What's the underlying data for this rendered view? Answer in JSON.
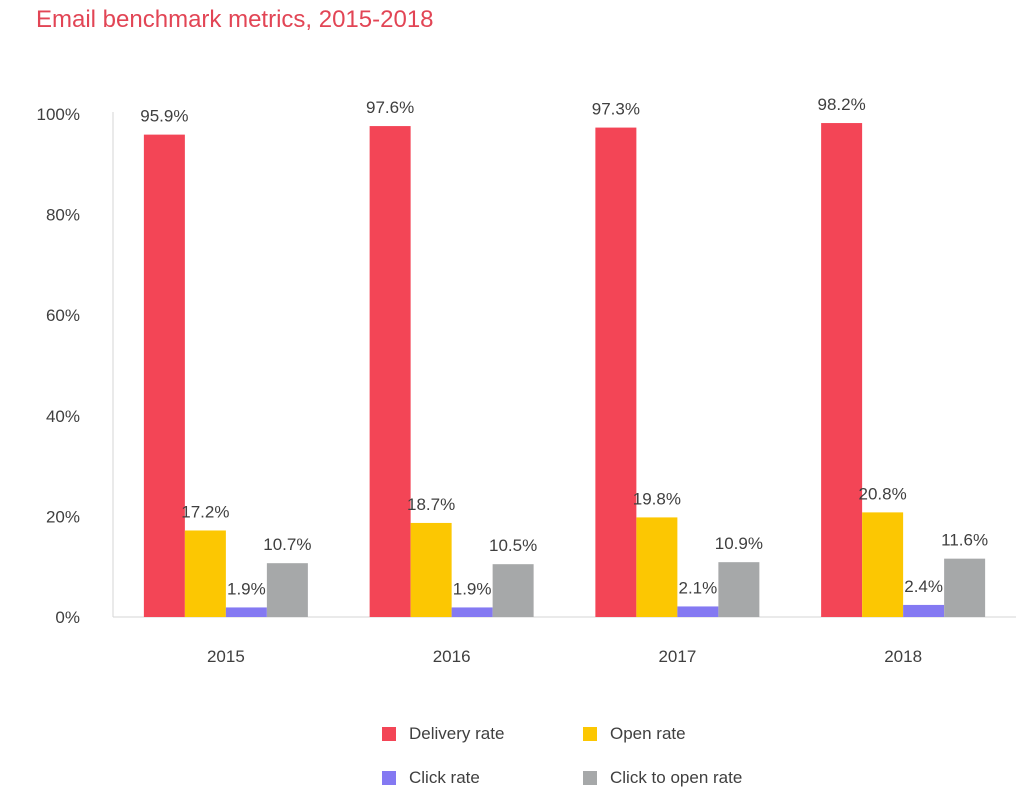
{
  "chart_data": {
    "type": "bar",
    "title": "Email benchmark metrics, 2015-2018",
    "categories": [
      "2015",
      "2016",
      "2017",
      "2018"
    ],
    "series": [
      {
        "name": "Delivery rate",
        "color": "#f34556",
        "values": [
          95.9,
          97.6,
          97.3,
          98.2
        ],
        "labels": [
          "95.9%",
          "97.6%",
          "97.3%",
          "98.2%"
        ]
      },
      {
        "name": "Open rate",
        "color": "#fcc702",
        "values": [
          17.2,
          18.7,
          19.8,
          20.8
        ],
        "labels": [
          "17.2%",
          "18.7%",
          "19.8%",
          "20.8%"
        ]
      },
      {
        "name": "Click rate",
        "color": "#8479f2",
        "values": [
          1.9,
          1.9,
          2.1,
          2.4
        ],
        "labels": [
          "1.9%",
          "1.9%",
          "2.1%",
          "2.4%"
        ]
      },
      {
        "name": "Click to open rate",
        "color": "#a6a8a9",
        "values": [
          10.7,
          10.5,
          10.9,
          11.6
        ],
        "labels": [
          "10.7%",
          "10.5%",
          "10.9%",
          "11.6%"
        ]
      }
    ],
    "ylim": [
      0,
      100
    ],
    "yticks": [
      0,
      20,
      40,
      60,
      80,
      100
    ],
    "ytick_labels": [
      "0%",
      "20%",
      "40%",
      "60%",
      "80%",
      "100%"
    ],
    "xlabel": "",
    "ylabel": "",
    "grid": false,
    "legend_position": "bottom"
  }
}
